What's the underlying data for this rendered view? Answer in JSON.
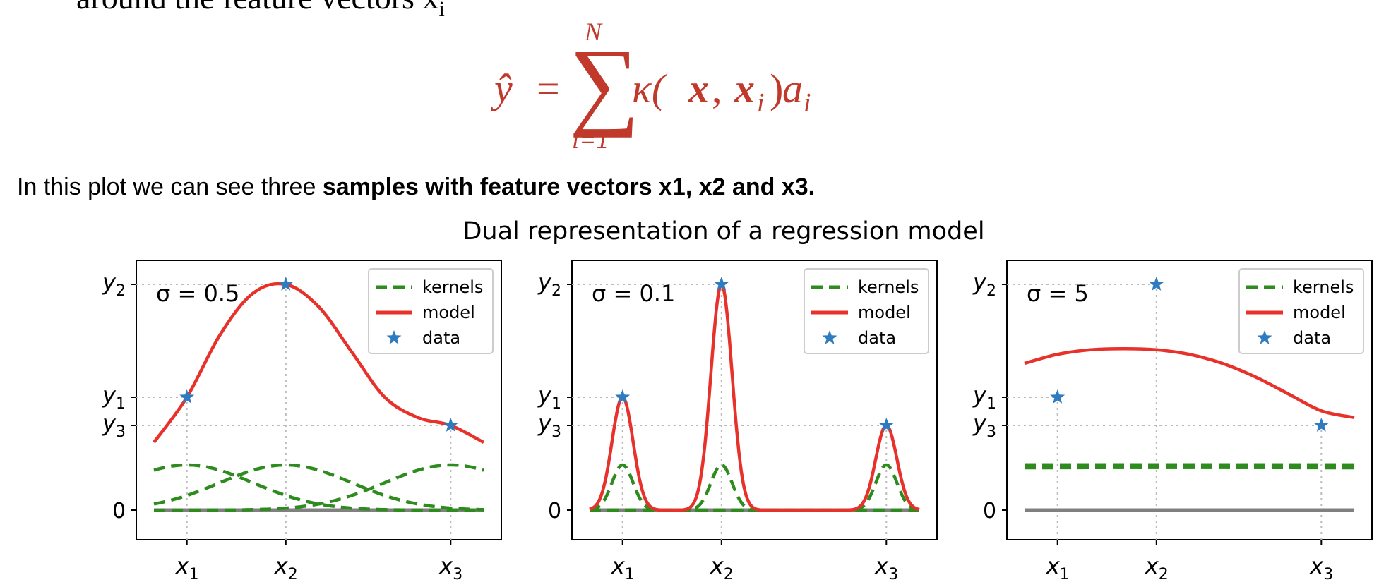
{
  "intro_fragment": "around the feature vectors x",
  "formula": {
    "lhs": "ŷ",
    "eq": "=",
    "sum_upper": "N",
    "sum_lower": "i=1",
    "kappa": "κ(",
    "x": "x",
    "comma": ", ",
    "xi": "x",
    "sub_i": "i",
    "close": ")",
    "a": "a",
    "color": "#c0392b"
  },
  "sentence": {
    "plain": "In this plot we can see three ",
    "bold": "samples with feature vectors x1, x2 and x3."
  },
  "chart_title": "Dual representation of a regression model",
  "chart_data": [
    {
      "type": "line",
      "annotation": "σ = 0.5",
      "sigma": 0.5,
      "xlim": [
        -0.5,
        4.5
      ],
      "x_ticks": [
        "x",
        "x",
        "x"
      ],
      "x_tick_subs": [
        "1",
        "2",
        "3"
      ],
      "y_ticks": [
        "y",
        "y",
        "y",
        "0"
      ],
      "y_tick_subs": [
        "2",
        "1",
        "3",
        ""
      ],
      "legend": [
        "kernels",
        "model",
        "data"
      ],
      "legend_position": "top-right"
    },
    {
      "type": "line",
      "annotation": "σ = 0.1",
      "sigma": 0.1,
      "legend": [
        "kernels",
        "model",
        "data"
      ],
      "legend_position": "top-right"
    },
    {
      "type": "line",
      "annotation": "σ = 5",
      "sigma": 5,
      "legend": [
        "kernels",
        "model",
        "data"
      ],
      "legend_position": "top-right"
    }
  ],
  "shared_data": {
    "data_x": [
      0,
      1.5,
      4
    ],
    "data_y": [
      1.0,
      2.0,
      0.75
    ],
    "colors": {
      "kernels": "#2e8b1e",
      "model": "#e8312a",
      "data": "#2f7bbf",
      "zero": "#808080",
      "grid": "#bbbbbb"
    }
  },
  "sigma_model": {
    "s0.5": {
      "kernel_heights": [
        0.4,
        0.4,
        0.4
      ],
      "model_y_fixed": null,
      "model_shape": [
        [
          -0.5,
          0.6
        ],
        [
          0,
          1.0
        ],
        [
          0.5,
          1.55
        ],
        [
          1.0,
          1.92
        ],
        [
          1.5,
          2.0
        ],
        [
          2.0,
          1.8
        ],
        [
          2.5,
          1.4
        ],
        [
          3.0,
          1.0
        ],
        [
          3.5,
          0.82
        ],
        [
          4.0,
          0.75
        ],
        [
          4.5,
          0.6
        ]
      ]
    },
    "s0.1": {
      "kernel_heights": [
        0.4,
        0.4,
        0.4
      ]
    },
    "s5": {
      "kernel_heights": [
        0.39,
        0.39,
        0.39
      ],
      "model_shape": [
        [
          -0.5,
          1.3
        ],
        [
          0,
          1.38
        ],
        [
          0.5,
          1.42
        ],
        [
          1.0,
          1.43
        ],
        [
          1.5,
          1.42
        ],
        [
          2.0,
          1.38
        ],
        [
          2.5,
          1.3
        ],
        [
          3.0,
          1.18
        ],
        [
          3.5,
          1.03
        ],
        [
          4.0,
          0.88
        ],
        [
          4.5,
          0.82
        ]
      ]
    }
  }
}
